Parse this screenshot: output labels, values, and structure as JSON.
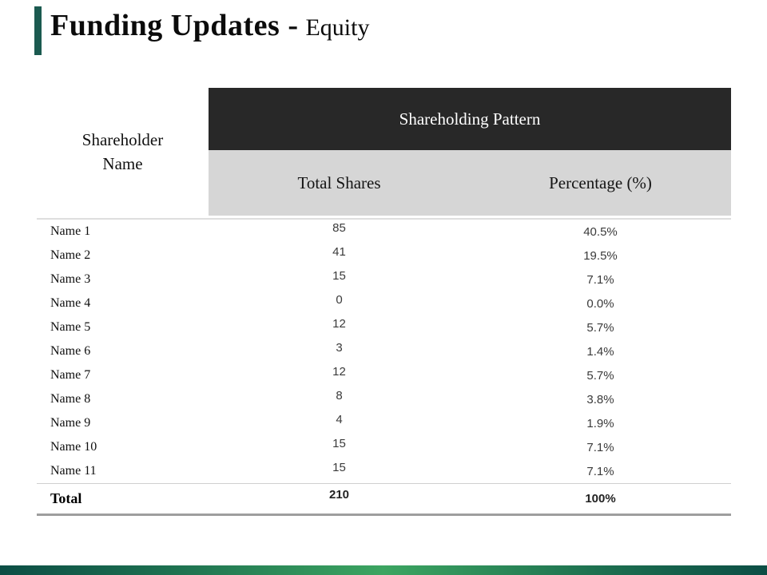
{
  "slide": {
    "title_main": "Funding Updates -",
    "title_sub": "Equity"
  },
  "colors": {
    "accent_teal": "#1b5a50",
    "table_header_dark": "#282828",
    "table_header_gray": "#d6d6d6",
    "separator_light": "#d0d0d0",
    "separator_heavy": "#9e9e9e",
    "footer_edge": "#0c4e45",
    "footer_center": "#3ca561"
  },
  "table": {
    "corner_header": "Shareholder Name",
    "group_header": "Shareholding Pattern",
    "col_headers": [
      "Total Shares",
      "Percentage (%)"
    ],
    "rows": [
      {
        "name": "Name 1",
        "shares": "85",
        "pct": "40.5%"
      },
      {
        "name": "Name 2",
        "shares": "41",
        "pct": "19.5%"
      },
      {
        "name": "Name 3",
        "shares": "15",
        "pct": "7.1%"
      },
      {
        "name": "Name 4",
        "shares": "0",
        "pct": "0.0%"
      },
      {
        "name": "Name 5",
        "shares": "12",
        "pct": "5.7%"
      },
      {
        "name": "Name 6",
        "shares": "3",
        "pct": "1.4%"
      },
      {
        "name": "Name 7",
        "shares": "12",
        "pct": "5.7%"
      },
      {
        "name": "Name 8",
        "shares": "8",
        "pct": "3.8%"
      },
      {
        "name": "Name 9",
        "shares": "4",
        "pct": "1.9%"
      },
      {
        "name": "Name 10",
        "shares": "15",
        "pct": "7.1%"
      },
      {
        "name": "Name 11",
        "shares": "15",
        "pct": "7.1%"
      }
    ],
    "total": {
      "name": "Total",
      "shares": "210",
      "pct": "100%"
    }
  }
}
